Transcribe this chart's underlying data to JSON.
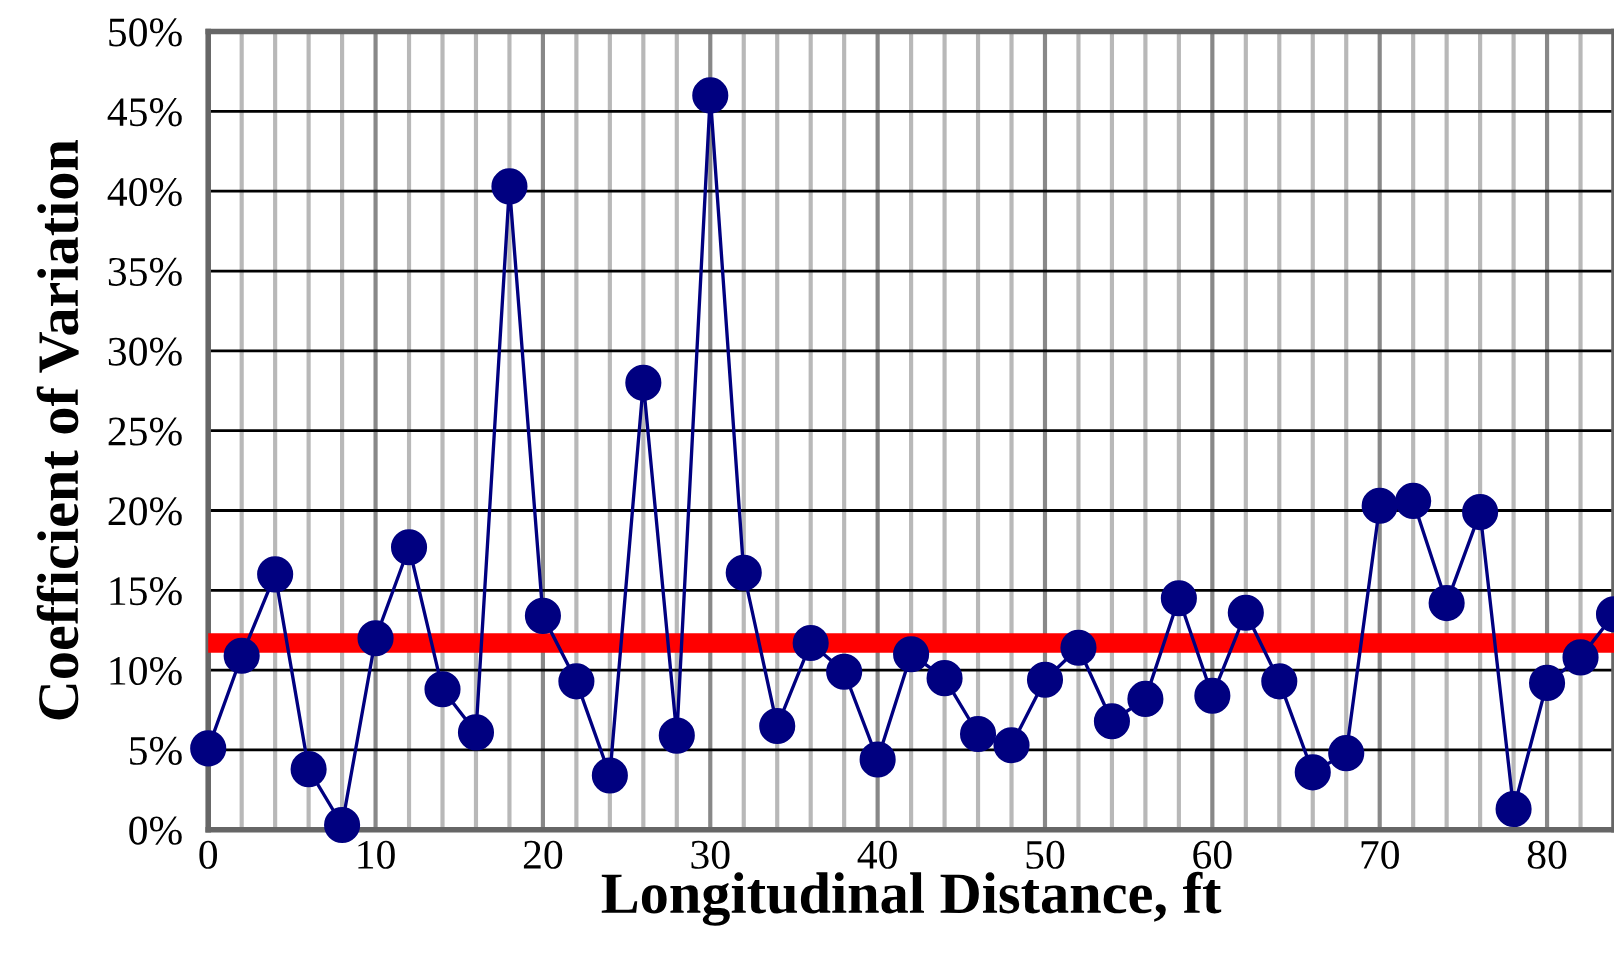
{
  "chart_data": {
    "type": "line",
    "xlabel": "Longitudinal Distance, ft",
    "ylabel": "Coefficient of Variation",
    "x": [
      0,
      2,
      4,
      6,
      8,
      10,
      12,
      14,
      16,
      18,
      20,
      22,
      24,
      26,
      28,
      30,
      32,
      34,
      36,
      38,
      40,
      42,
      44,
      46,
      48,
      50,
      52,
      54,
      56,
      58,
      60,
      62,
      64,
      66,
      68,
      70,
      72,
      74,
      76,
      78,
      80,
      82,
      84
    ],
    "series": [
      {
        "color": "#000080",
        "values": [
          5.1,
          10.9,
          16.0,
          3.8,
          0.3,
          12.0,
          17.7,
          8.8,
          6.1,
          40.3,
          13.4,
          9.3,
          3.4,
          28.0,
          5.9,
          46.0,
          16.1,
          6.5,
          11.7,
          9.9,
          4.4,
          11.0,
          9.5,
          6.0,
          5.3,
          9.4,
          11.4,
          6.8,
          8.2,
          14.5,
          8.4,
          13.6,
          9.3,
          3.6,
          4.8,
          20.3,
          20.6,
          14.2,
          19.9,
          1.3,
          9.2,
          10.8,
          13.5
        ]
      }
    ],
    "marker": "circle",
    "line_style": "solid",
    "xlim": [
      0,
      84
    ],
    "xticks": [
      0,
      10,
      20,
      30,
      40,
      50,
      60,
      70,
      80
    ],
    "ylim": [
      0,
      50
    ],
    "yticks": [
      {
        "value": 0,
        "label": "0%"
      },
      {
        "value": 5,
        "label": "5%"
      },
      {
        "value": 10,
        "label": "10%"
      },
      {
        "value": 15,
        "label": "15%"
      },
      {
        "value": 20,
        "label": "20%"
      },
      {
        "value": 25,
        "label": "25%"
      },
      {
        "value": 30,
        "label": "30%"
      },
      {
        "value": 35,
        "label": "35%"
      },
      {
        "value": 40,
        "label": "40%"
      },
      {
        "value": 45,
        "label": "45%"
      },
      {
        "value": 50,
        "label": "50%"
      }
    ],
    "ref_lines": [
      {
        "axis": "y",
        "value": 11.7,
        "color": "#ff0000"
      }
    ],
    "grid": true,
    "legend": false
  }
}
